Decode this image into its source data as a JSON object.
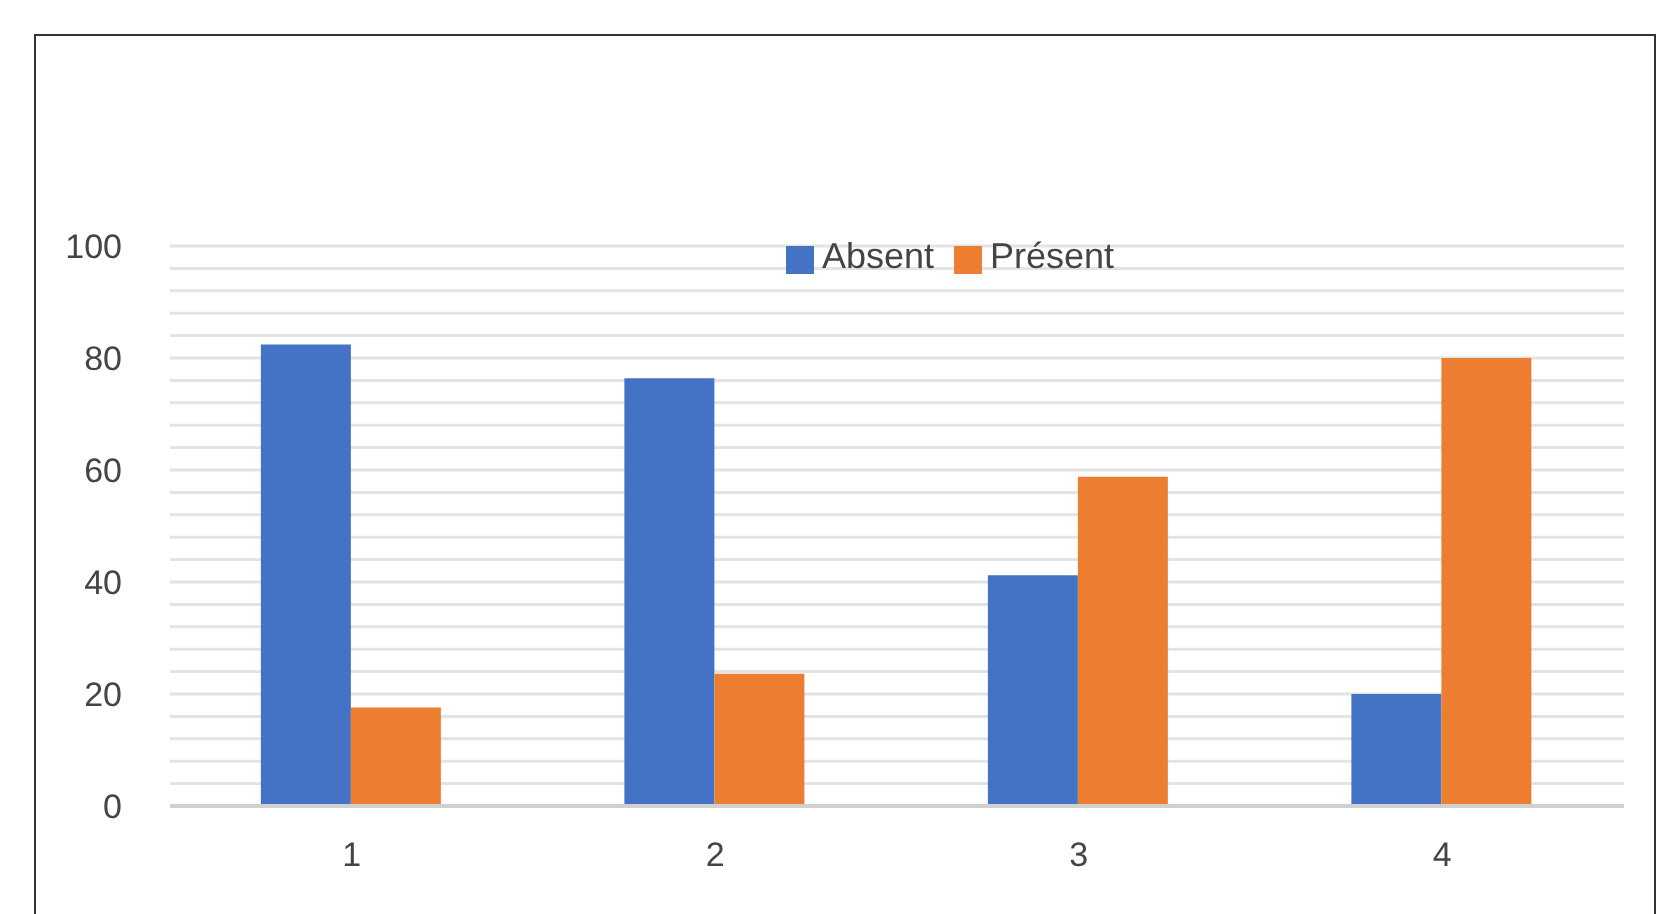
{
  "chart_data": {
    "type": "bar",
    "categories": [
      "1",
      "2",
      "3",
      "4"
    ],
    "series": [
      {
        "name": "Absent",
        "color": "#4472c4",
        "values": [
          82.4,
          76.4,
          41.2,
          20
        ]
      },
      {
        "name": "Présent",
        "color": "#ed7d31",
        "values": [
          17.6,
          23.6,
          58.8,
          80
        ]
      }
    ],
    "ylim": [
      0,
      100
    ],
    "yticks": [
      0,
      {
        "value": 4,
        "label": null
      },
      {
        "value": 8,
        "label": null
      },
      {
        "value": 12,
        "label": null
      },
      {
        "value": 16,
        "label": null
      },
      20,
      {
        "value": 24,
        "label": null
      },
      {
        "value": 28,
        "label": null
      },
      {
        "value": 32,
        "label": null
      },
      {
        "value": 36,
        "label": null
      },
      40,
      {
        "value": 44,
        "label": null
      },
      {
        "value": 48,
        "label": null
      },
      {
        "value": 52,
        "label": null
      },
      {
        "value": 56,
        "label": null
      },
      60,
      {
        "value": 64,
        "label": null
      },
      {
        "value": 68,
        "label": null
      },
      {
        "value": 72,
        "label": null
      },
      {
        "value": 76,
        "label": null
      },
      80,
      {
        "value": 84,
        "label": null
      },
      {
        "value": 88,
        "label": null
      },
      {
        "value": 92,
        "label": null
      },
      {
        "value": 96,
        "label": null
      },
      100
    ],
    "grid": "y",
    "legend": "top"
  }
}
